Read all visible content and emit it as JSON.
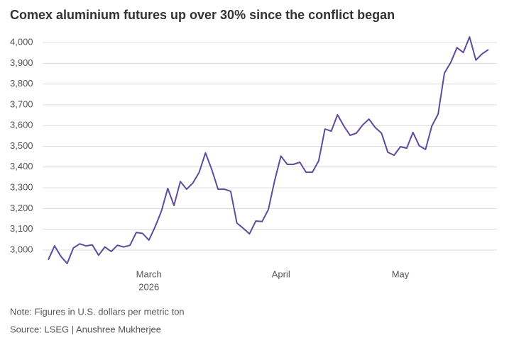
{
  "chart_data": {
    "type": "line",
    "title": "Comex aluminium futures up over 30% since the conflict began",
    "note": "Note: Figures in U.S. dollars per metric ton",
    "source": "Source: LSEG | Anushree Mukherjee",
    "x_year_label": "2026",
    "categories": [
      null,
      null,
      null,
      null,
      null,
      null,
      null,
      null,
      null,
      null,
      null,
      null,
      null,
      null,
      null,
      null,
      "March",
      null,
      null,
      null,
      null,
      null,
      null,
      null,
      null,
      null,
      null,
      null,
      null,
      null,
      null,
      null,
      null,
      null,
      null,
      null,
      null,
      "April",
      null,
      null,
      null,
      null,
      null,
      null,
      null,
      null,
      null,
      null,
      null,
      null,
      null,
      null,
      null,
      null,
      null,
      null,
      "May",
      null,
      null,
      null,
      null,
      null,
      null,
      null,
      null,
      null,
      null,
      null,
      null,
      null,
      null
    ],
    "values": [
      2953,
      3020,
      2970,
      2935,
      3010,
      3030,
      3020,
      3025,
      2975,
      3015,
      2993,
      3023,
      3015,
      3023,
      3085,
      3080,
      3048,
      3113,
      3188,
      3297,
      3215,
      3330,
      3293,
      3323,
      3375,
      3468,
      3388,
      3293,
      3293,
      3283,
      3130,
      3105,
      3078,
      3140,
      3137,
      3195,
      3335,
      3453,
      3413,
      3413,
      3423,
      3375,
      3375,
      3430,
      3583,
      3573,
      3652,
      3598,
      3553,
      3563,
      3603,
      3631,
      3590,
      3563,
      3471,
      3457,
      3498,
      3491,
      3567,
      3502,
      3485,
      3598,
      3655,
      3853,
      3904,
      3975,
      3952,
      4027,
      3915,
      3945,
      3966
    ],
    "color": "#5e4b9c",
    "ylim": [
      2920,
      4040
    ],
    "yticks": [
      {
        "value": 3000,
        "label": "3,000"
      },
      {
        "value": 3100,
        "label": "3,100"
      },
      {
        "value": 3200,
        "label": "3,200"
      },
      {
        "value": 3300,
        "label": "3,300"
      },
      {
        "value": 3400,
        "label": "3,400"
      },
      {
        "value": 3500,
        "label": "3,500"
      },
      {
        "value": 3600,
        "label": "3,600"
      },
      {
        "value": 3700,
        "label": "3,700"
      },
      {
        "value": 3800,
        "label": "3,800"
      },
      {
        "value": 3900,
        "label": "3,900"
      },
      {
        "value": 4000,
        "label": "4,000"
      }
    ],
    "grid": true
  }
}
